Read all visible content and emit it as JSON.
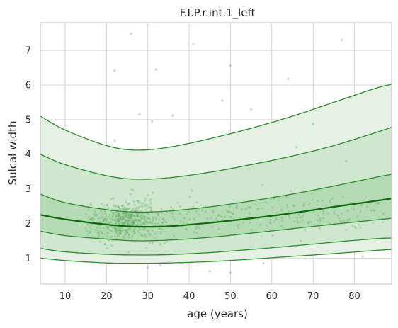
{
  "chart_data": {
    "type": "line",
    "title": "F.I.P.r.int.1_left",
    "xlabel": "age (years)",
    "ylabel": "Sulcal width",
    "xlim": [
      4,
      89
    ],
    "ylim": [
      0.25,
      7.8
    ],
    "xticks": [
      10,
      20,
      30,
      40,
      50,
      60,
      70,
      80
    ],
    "yticks": [
      1,
      2,
      3,
      4,
      5,
      6,
      7
    ],
    "grid": true,
    "legend": "none",
    "colors": {
      "line": "#2e8b2e",
      "median": "#0b6b0b",
      "band_outer": "#e4f1e4",
      "band_mid": "#cfe7cf",
      "band_inner": "#b5dbb5",
      "scatter": "#5aaa5a",
      "grid": "#d5d5d5",
      "frame": "#cccccc"
    },
    "x": [
      4,
      10,
      20,
      27,
      35,
      45,
      55,
      65,
      75,
      85,
      89
    ],
    "series": [
      {
        "values": [
          5.1,
          4.7,
          4.25,
          4.12,
          4.2,
          4.45,
          4.75,
          5.1,
          5.5,
          5.9,
          6.02
        ]
      },
      {
        "values": [
          4.0,
          3.7,
          3.38,
          3.28,
          3.32,
          3.48,
          3.7,
          3.95,
          4.25,
          4.62,
          4.78
        ]
      },
      {
        "values": [
          2.85,
          2.6,
          2.4,
          2.33,
          2.36,
          2.48,
          2.65,
          2.85,
          3.08,
          3.33,
          3.42
        ]
      },
      {
        "values": [
          2.25,
          2.12,
          1.97,
          1.91,
          1.92,
          2.02,
          2.15,
          2.3,
          2.48,
          2.65,
          2.72
        ]
      },
      {
        "values": [
          1.78,
          1.65,
          1.55,
          1.5,
          1.52,
          1.6,
          1.72,
          1.85,
          1.98,
          2.1,
          2.15
        ]
      },
      {
        "values": [
          1.28,
          1.18,
          1.11,
          1.09,
          1.1,
          1.16,
          1.25,
          1.35,
          1.46,
          1.56,
          1.58
        ]
      },
      {
        "values": [
          1.0,
          0.93,
          0.86,
          0.85,
          0.86,
          0.9,
          0.97,
          1.05,
          1.13,
          1.22,
          1.25
        ]
      }
    ],
    "scatter_outliers": [
      [
        26,
        7.48
      ],
      [
        41,
        7.18
      ],
      [
        77,
        7.3
      ],
      [
        22,
        6.42
      ],
      [
        32,
        6.45
      ],
      [
        50,
        6.56
      ],
      [
        64,
        6.18
      ],
      [
        28,
        5.15
      ],
      [
        31,
        4.95
      ],
      [
        36,
        5.12
      ],
      [
        55,
        5.3
      ],
      [
        70,
        4.88
      ],
      [
        48,
        5.55
      ],
      [
        45,
        0.62
      ],
      [
        50,
        0.58
      ],
      [
        30,
        0.72
      ],
      [
        33,
        0.8
      ],
      [
        58,
        0.85
      ],
      [
        22,
        4.4
      ],
      [
        82,
        1.05
      ],
      [
        78,
        3.8
      ],
      [
        66,
        4.2
      ]
    ],
    "scatter_cloud": {
      "n": 750,
      "x_range": [
        15,
        88
      ],
      "x_mode": 25,
      "y_center": 2.1,
      "y_spread": 0.55
    }
  }
}
